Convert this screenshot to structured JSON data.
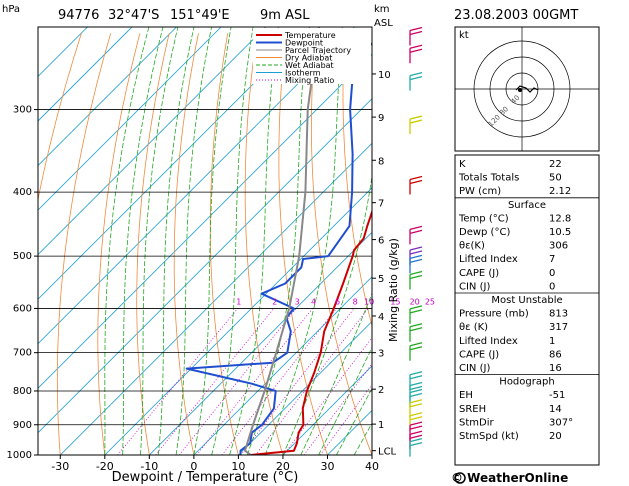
{
  "header": {
    "station": "94776",
    "lat": "32°47'S",
    "lon": "151°49'E",
    "elevation": "9m ASL",
    "datetime": "23.08.2003 00GMT",
    "pressure_unit": "hPa",
    "height_unit_line1": "km",
    "height_unit_line2": "ASL"
  },
  "legend": {
    "items": [
      {
        "label": "Temperature",
        "color": "#cc0000"
      },
      {
        "label": "Dewpoint",
        "color": "#1f4fd0"
      },
      {
        "label": "Parcel Trajectory",
        "color": "#888888"
      },
      {
        "label": "Dry Adiabat",
        "color": "#f08a3c"
      },
      {
        "label": "Wet Adiabat",
        "color": "#22aa22"
      },
      {
        "label": "Isotherm",
        "color": "#1a9fd6"
      },
      {
        "label": "Mixing Ratio",
        "color": "#cc00cc"
      }
    ]
  },
  "chart_data": {
    "type": "line",
    "title": "",
    "xlabel": "Dewpoint / Temperature (°C)",
    "ylabel": "hPa",
    "xlim": [
      -35,
      40
    ],
    "x_ticks": [
      "-30",
      "-20",
      "-10",
      "0",
      "10",
      "20",
      "30",
      "40"
    ],
    "pressure_ticks": [
      "300",
      "400",
      "500",
      "600",
      "700",
      "800",
      "900",
      "1000"
    ],
    "height_label": "km ASL",
    "height_ticks": [
      {
        "label": "10",
        "p": 265
      },
      {
        "label": "9",
        "p": 308
      },
      {
        "label": "8",
        "p": 358
      },
      {
        "label": "7",
        "p": 415
      },
      {
        "label": "6",
        "p": 472
      },
      {
        "label": "5",
        "p": 540
      },
      {
        "label": "4",
        "p": 616
      },
      {
        "label": "3",
        "p": 700
      },
      {
        "label": "2",
        "p": 795
      },
      {
        "label": "1",
        "p": 898
      },
      {
        "label": "LCL",
        "p": 985
      }
    ],
    "mixing_ratio_axis_label": "Mixing Ratio (g/kg)",
    "mixing_ratio_labels": [
      "1",
      "2",
      "3",
      "4",
      "6",
      "8",
      "10",
      "15",
      "20",
      "25"
    ],
    "series": [
      {
        "name": "Temperature",
        "color": "#cc0000",
        "points": [
          [
            1000,
            12.8
          ],
          [
            985,
            21.5
          ],
          [
            960,
            20.5
          ],
          [
            925,
            18.5
          ],
          [
            900,
            17.8
          ],
          [
            850,
            14.0
          ],
          [
            800,
            11.0
          ],
          [
            750,
            8.5
          ],
          [
            700,
            5.5
          ],
          [
            650,
            1.5
          ],
          [
            600,
            -1.5
          ],
          [
            550,
            -5.0
          ],
          [
            500,
            -9.0
          ],
          [
            490,
            -10.0
          ],
          [
            470,
            -10.5
          ],
          [
            450,
            -12.5
          ],
          [
            400,
            -17.5
          ],
          [
            350,
            -24.5
          ],
          [
            300,
            -33.0
          ],
          [
            260,
            -41.0
          ],
          [
            245,
            -45.0
          ],
          [
            240,
            -40.5
          ],
          [
            225,
            -36.5
          ]
        ]
      },
      {
        "name": "Dewpoint",
        "color": "#1f4fd0",
        "points": [
          [
            1000,
            10.5
          ],
          [
            985,
            9.5
          ],
          [
            960,
            10.0
          ],
          [
            925,
            8.0
          ],
          [
            900,
            8.5
          ],
          [
            850,
            7.5
          ],
          [
            800,
            4.0
          ],
          [
            780,
            -3.0
          ],
          [
            740,
            -21.0
          ],
          [
            725,
            -3.0
          ],
          [
            700,
            -2.0
          ],
          [
            650,
            -6.0
          ],
          [
            620,
            -10.0
          ],
          [
            600,
            -10.5
          ],
          [
            570,
            -21.0
          ],
          [
            550,
            -18.0
          ],
          [
            520,
            -18.0
          ],
          [
            505,
            -19.5
          ],
          [
            500,
            -14.5
          ],
          [
            450,
            -16.5
          ],
          [
            400,
            -23.5
          ],
          [
            350,
            -32.0
          ],
          [
            300,
            -42.5
          ],
          [
            260,
            -51.0
          ],
          [
            245,
            -53.0
          ],
          [
            230,
            -51.5
          ],
          [
            225,
            -50.5
          ]
        ]
      },
      {
        "name": "Parcel Trajectory",
        "color": "#888888",
        "points": [
          [
            1000,
            12.8
          ],
          [
            985,
            10.5
          ],
          [
            900,
            6.5
          ],
          [
            800,
            1.5
          ],
          [
            700,
            -4.5
          ],
          [
            600,
            -11.5
          ],
          [
            500,
            -21.0
          ],
          [
            400,
            -34.0
          ],
          [
            300,
            -52.0
          ],
          [
            225,
            -68.0
          ]
        ]
      }
    ]
  },
  "hodograph": {
    "label": "kt",
    "rings": [
      "40",
      "80",
      "120"
    ]
  },
  "stats": {
    "k": {
      "label": "K",
      "value": "22"
    },
    "totals": {
      "label": "Totals Totals",
      "value": "50"
    },
    "pw": {
      "label": "PW (cm)",
      "value": "2.12"
    },
    "surface": {
      "title": "Surface",
      "rows": [
        {
          "label": "Temp (°C)",
          "value": "12.8"
        },
        {
          "label": "Dewp (°C)",
          "value": "10.5"
        },
        {
          "label": "θε(K)",
          "value": "306"
        },
        {
          "label": "Lifted Index",
          "value": "7"
        },
        {
          "label": "CAPE (J)",
          "value": "0"
        },
        {
          "label": "CIN (J)",
          "value": "0"
        }
      ]
    },
    "most_unstable": {
      "title": "Most Unstable",
      "rows": [
        {
          "label": "Pressure (mb)",
          "value": "813"
        },
        {
          "label": "θε (K)",
          "value": "317"
        },
        {
          "label": "Lifted Index",
          "value": "1"
        },
        {
          "label": "CAPE (J)",
          "value": "86"
        },
        {
          "label": "CIN (J)",
          "value": "16"
        }
      ]
    },
    "hodograph_stats": {
      "title": "Hodograph",
      "rows": [
        {
          "label": "EH",
          "value": "-51"
        },
        {
          "label": "SREH",
          "value": "14"
        },
        {
          "label": "StmDir",
          "value": "307°"
        },
        {
          "label": "StmSpd (kt)",
          "value": "20"
        }
      ]
    }
  },
  "footer": {
    "brand": "© WeatherOnline"
  },
  "colors": {
    "temperature": "#cc0000",
    "dewpoint": "#1f4fd0",
    "parcel": "#888888",
    "dry_adiabat": "#f08a3c",
    "wet_adiabat": "#22aa22",
    "isotherm": "#1a9fd6",
    "mixing_ratio": "#cc00cc"
  }
}
